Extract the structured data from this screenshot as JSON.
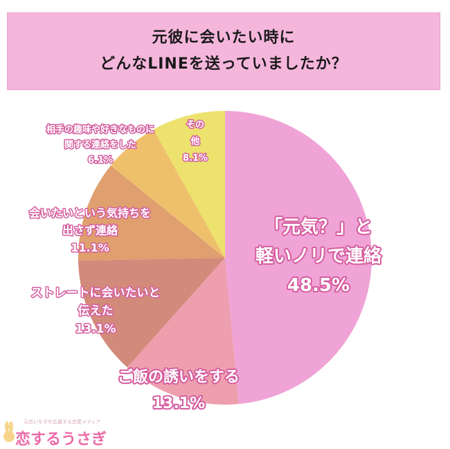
{
  "title": {
    "line1": "元彼に会いたい時に",
    "line2": "どんなLINEを送っていましたか？"
  },
  "chart_data": {
    "type": "pie",
    "slices": [
      {
        "label_lines": [
          "「元気？」と",
          "軽いノリで連絡"
        ],
        "value": 48.5,
        "value_text": "48.5%",
        "color": "#f0a3d6"
      },
      {
        "label_lines": [
          "ご飯の誘いをする"
        ],
        "value": 13.1,
        "value_text": "13.1%",
        "color": "#ee9fae"
      },
      {
        "label_lines": [
          "ストレートに会いたいと",
          "伝えた"
        ],
        "value": 13.1,
        "value_text": "13.1%",
        "color": "#d28a7b"
      },
      {
        "label_lines": [
          "会いたいという気持ちを",
          "出さず連絡"
        ],
        "value": 11.1,
        "value_text": "11.1%",
        "color": "#df9f6e"
      },
      {
        "label_lines": [
          "相手の趣味や好きなものに",
          "関する連絡をした"
        ],
        "value": 6.1,
        "value_text": "6.1%",
        "color": "#efc06c"
      },
      {
        "label_lines": [
          "その",
          "他"
        ],
        "value": 8.1,
        "value_text": "8.1%",
        "color": "#ece26d"
      }
    ]
  },
  "logo": {
    "tagline": "元恋いを子を応援する恋愛メディア",
    "name": "恋するうさぎ",
    "icon": "rabbit-icon"
  }
}
